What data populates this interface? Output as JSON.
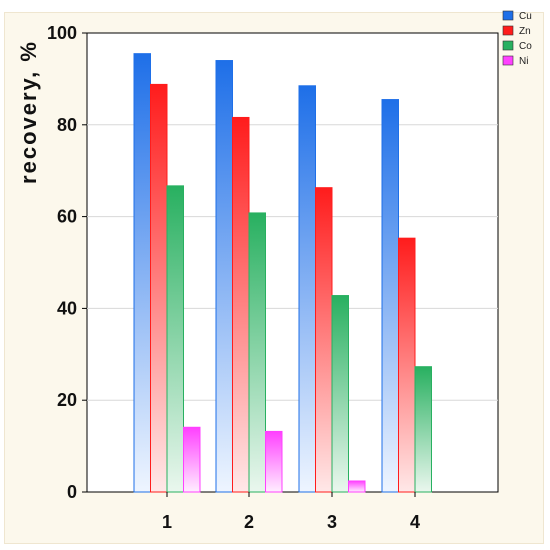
{
  "chart_data": {
    "type": "bar",
    "categories": [
      "1",
      "2",
      "3",
      "4"
    ],
    "series": [
      {
        "name": "Cu",
        "values": [
          95.5,
          94,
          88.5,
          85.5
        ],
        "color_top": "#1e6fe8",
        "color_bottom": "#eef5ff"
      },
      {
        "name": "Zn",
        "values": [
          88.8,
          81.6,
          66.3,
          55.3
        ],
        "color_top": "#ff1c1c",
        "color_bottom": "#ffe8e8"
      },
      {
        "name": "Co",
        "values": [
          66.7,
          60.8,
          42.8,
          27.3
        ],
        "color_top": "#28b060",
        "color_bottom": "#eaf7ee"
      },
      {
        "name": "Ni",
        "values": [
          14.1,
          13.2,
          2.4,
          null
        ],
        "color_top": "#ff40ff",
        "color_bottom": "#ffeeff"
      }
    ],
    "title": "",
    "xlabel": "",
    "ylabel": "recovery, %",
    "ylim": [
      0,
      100
    ],
    "yticks": [
      "0",
      "20",
      "40",
      "60",
      "80",
      "100"
    ],
    "grid": true,
    "legend_position": "top-right"
  }
}
